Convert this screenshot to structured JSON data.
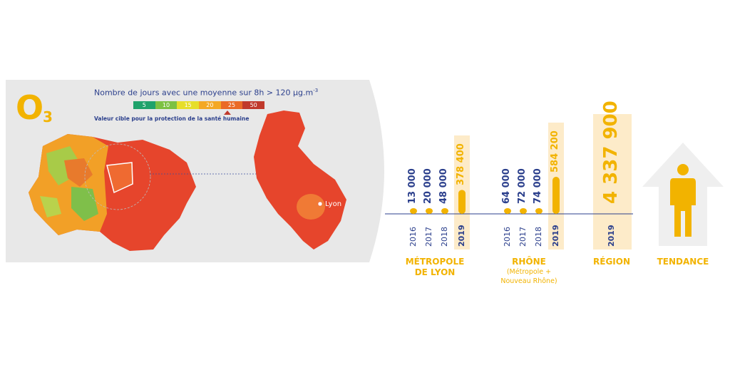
{
  "pollutant": {
    "symbol": "O",
    "subscript": "3"
  },
  "legend": {
    "title": "Nombre de jours avec une moyenne sur 8h > 120 µg.m",
    "title_exponent": "-3",
    "subtitle": "Valeur cible pour la protection de la santé humaine",
    "scale_labels": [
      "5",
      "10",
      "15",
      "20",
      "25",
      "50"
    ],
    "scale_colors": [
      "#1fa26b",
      "#7cc142",
      "#e6de2a",
      "#f4a824",
      "#ea6a26",
      "#c0392b"
    ]
  },
  "map": {
    "city_label": "Lyon"
  },
  "colors": {
    "accent": "#f2b300",
    "navy": "#2b3f8c",
    "highlight_bg": "#fdebc9",
    "arrow_bg": "#efefef"
  },
  "chart_data": {
    "type": "bar",
    "groups": [
      {
        "label_lines": [
          "MÉTROPOLE",
          "DE LYON"
        ],
        "note_lines": [],
        "x": [
          "2016",
          "2017",
          "2018",
          "2019"
        ],
        "values": [
          13000,
          20000,
          48000,
          378400
        ],
        "value_labels": [
          "13 000",
          "20 000",
          "48 000",
          "378 400"
        ]
      },
      {
        "label_lines": [
          "RHÔNE"
        ],
        "note_lines": [
          "(Métropole +",
          "Nouveau Rhône)"
        ],
        "x": [
          "2016",
          "2017",
          "2018",
          "2019"
        ],
        "values": [
          64000,
          72000,
          74000,
          584200
        ],
        "value_labels": [
          "64 000",
          "72 000",
          "74 000",
          "584 200"
        ]
      },
      {
        "label_lines": [
          "RÉGION"
        ],
        "note_lines": [],
        "x": [
          "2019"
        ],
        "values": [
          4337900
        ],
        "value_labels": [
          "4 337 900"
        ]
      }
    ],
    "trend_label": "TENDANCE",
    "highlight_year": "2019"
  }
}
